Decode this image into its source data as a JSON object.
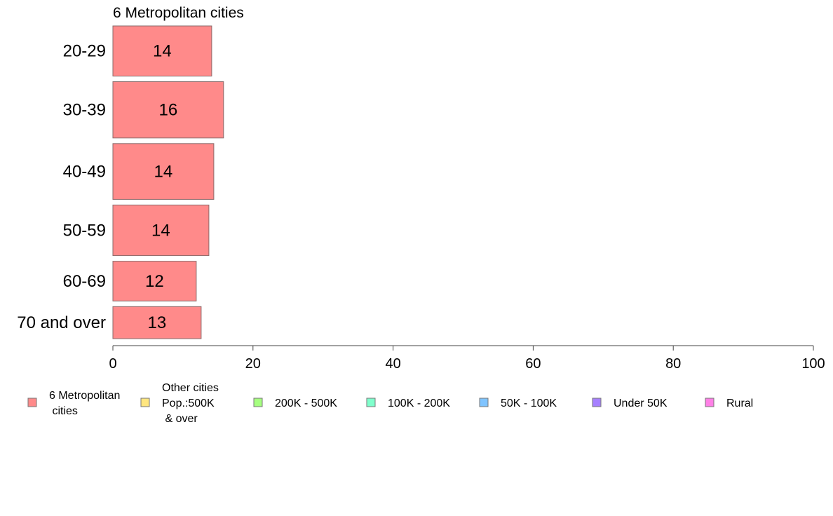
{
  "chart_data": {
    "type": "bar",
    "orientation": "horizontal",
    "title": "6 Metropolitan cities",
    "xlabel": "",
    "ylabel": "",
    "xlim": [
      0,
      100
    ],
    "x_ticks": [
      0,
      20,
      40,
      60,
      80,
      100
    ],
    "grid": false,
    "legend_position": "bottom",
    "categories": [
      "20-29",
      "30-39",
      "40-49",
      "50-59",
      "60-69",
      "70 and over"
    ],
    "category_weights": [
      0.97,
      1.09,
      1.08,
      0.98,
      0.77,
      0.62
    ],
    "series": [
      {
        "name": "6 Metropolitan\n cities",
        "color": "#ff8a8a",
        "values": [
          14.1,
          15.8,
          14.4,
          13.7,
          11.9,
          12.6
        ],
        "labels": [
          "14",
          "16",
          "14",
          "14",
          "12",
          "13"
        ]
      }
    ],
    "legend": [
      {
        "label": "6 Metropolitan\n cities",
        "color": "#ff8a8a"
      },
      {
        "label": "Other cities\nPop.:500K\n & over",
        "color": "#ffe680"
      },
      {
        "label": "200K - 500K",
        "color": "#a6ff80"
      },
      {
        "label": "100K - 200K",
        "color": "#80ffcc"
      },
      {
        "label": "50K - 100K",
        "color": "#80c4ff"
      },
      {
        "label": "Under 50K",
        "color": "#a680ff"
      },
      {
        "label": "Rural",
        "color": "#ff80e6"
      }
    ]
  }
}
